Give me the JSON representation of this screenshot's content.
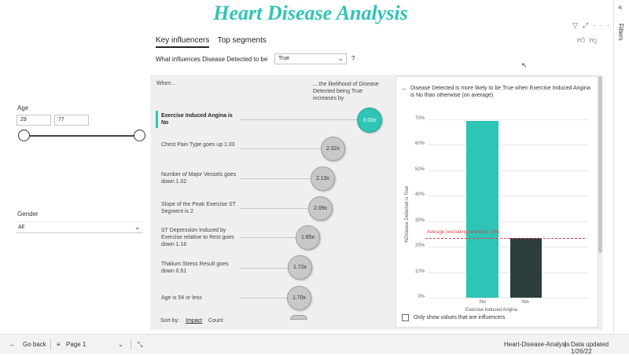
{
  "report": {
    "title": "Heart Disease Analysis"
  },
  "filters_pane": {
    "collapse_icon": "chevron-double-left-icon",
    "label": "Filters"
  },
  "visual_header": {
    "icons": [
      "filter-icon",
      "focus-mode-icon",
      "more-options-icon"
    ]
  },
  "feedback": {
    "icons": [
      "thumbs-up-icon",
      "thumbs-down-icon"
    ]
  },
  "tabs": [
    {
      "label": "Key influencers",
      "active": true
    },
    {
      "label": "Top segments",
      "active": false
    }
  ],
  "question": {
    "prefix": "What influences Disease Detected to be",
    "selected": "True",
    "help": "?"
  },
  "columns": {
    "when": "When...",
    "likelihood": "....the likelihood of Disease Detected being True increases by"
  },
  "influencers": [
    {
      "label": "Exercise Induced Angina is No",
      "value": "3.00x",
      "selected": true
    },
    {
      "label": "Chest Pain Type goes up 1.03",
      "value": "2.32x"
    },
    {
      "label": "Number of Major Vessels goes down 1.02",
      "value": "2.13x"
    },
    {
      "label": "Slope of the Peak Exercise ST Segment is 2",
      "value": "2.09x"
    },
    {
      "label": "ST Depression Induced by Exercise relative to Rest goes down 1.16",
      "value": "1.85x"
    },
    {
      "label": "Thalium Stress Result goes down 0.61",
      "value": "1.72x"
    },
    {
      "label": "Age is 54 or less",
      "value": "1.70x"
    }
  ],
  "sort": {
    "label": "Sort by:",
    "impact": "Impact",
    "count": "Count"
  },
  "detail": {
    "back_icon": "back-arrow-icon",
    "description": "Disease Detected is more likely to be True when Exercise Induced Angina is No than otherwise (on average).",
    "checkbox_label": "Only show values that are influencers",
    "checkbox_checked": false
  },
  "chart_data": {
    "type": "bar",
    "categories": [
      "No",
      "Yes"
    ],
    "values": [
      69.5,
      23.5
    ],
    "colors": [
      "#2ec4b6",
      "#2d3e3f"
    ],
    "ylabel": "%Disease Detected is True",
    "xlabel": "Exercise Induced Angina",
    "yticks": [
      "0%",
      "10%",
      "20%",
      "30%",
      "40%",
      "50%",
      "60%",
      "70%"
    ],
    "ylim": [
      0,
      70
    ],
    "reference_line": {
      "label": "Average (excluding selected): 23%",
      "value": 23,
      "color": "#d64550"
    }
  },
  "slicers": {
    "age": {
      "label": "Age",
      "min": "29",
      "max": "77"
    },
    "gender": {
      "label": "Gender",
      "selected": "All"
    }
  },
  "bottom_bar": {
    "go_back": "Go back",
    "page": "Page 1",
    "report_name": "Heart-Disease-Analysis",
    "separator": "|",
    "updated": "Data updated 1/26/22"
  }
}
